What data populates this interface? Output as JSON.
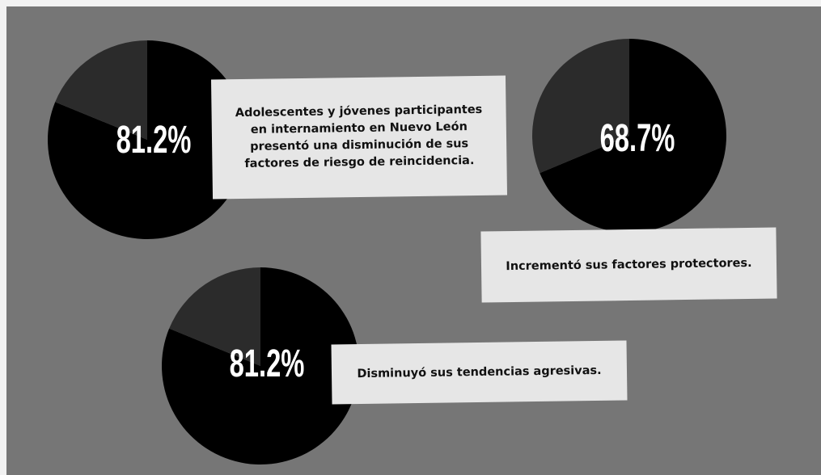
{
  "chart_data": [
    {
      "type": "pie",
      "title": "Adolescentes y jóvenes participantes en internamiento en Nuevo León presentó una disminución de sus factores de riesgo de reincidencia.",
      "values": [
        81.2,
        18.8
      ],
      "value_labels": [
        "81.2%",
        null
      ],
      "colors": [
        "#000000",
        "#2b2b2b"
      ]
    },
    {
      "type": "pie",
      "title": "Incrementó sus factores protectores.",
      "values": [
        68.7,
        31.3
      ],
      "value_labels": [
        "68.7%",
        null
      ],
      "colors": [
        "#000000",
        "#2b2b2b"
      ]
    },
    {
      "type": "pie",
      "title": "Disminuyó sus tendencias agresivas.",
      "values": [
        81.2,
        18.8
      ],
      "value_labels": [
        "81.2%",
        null
      ],
      "colors": [
        "#000000",
        "#2b2b2b"
      ]
    }
  ]
}
